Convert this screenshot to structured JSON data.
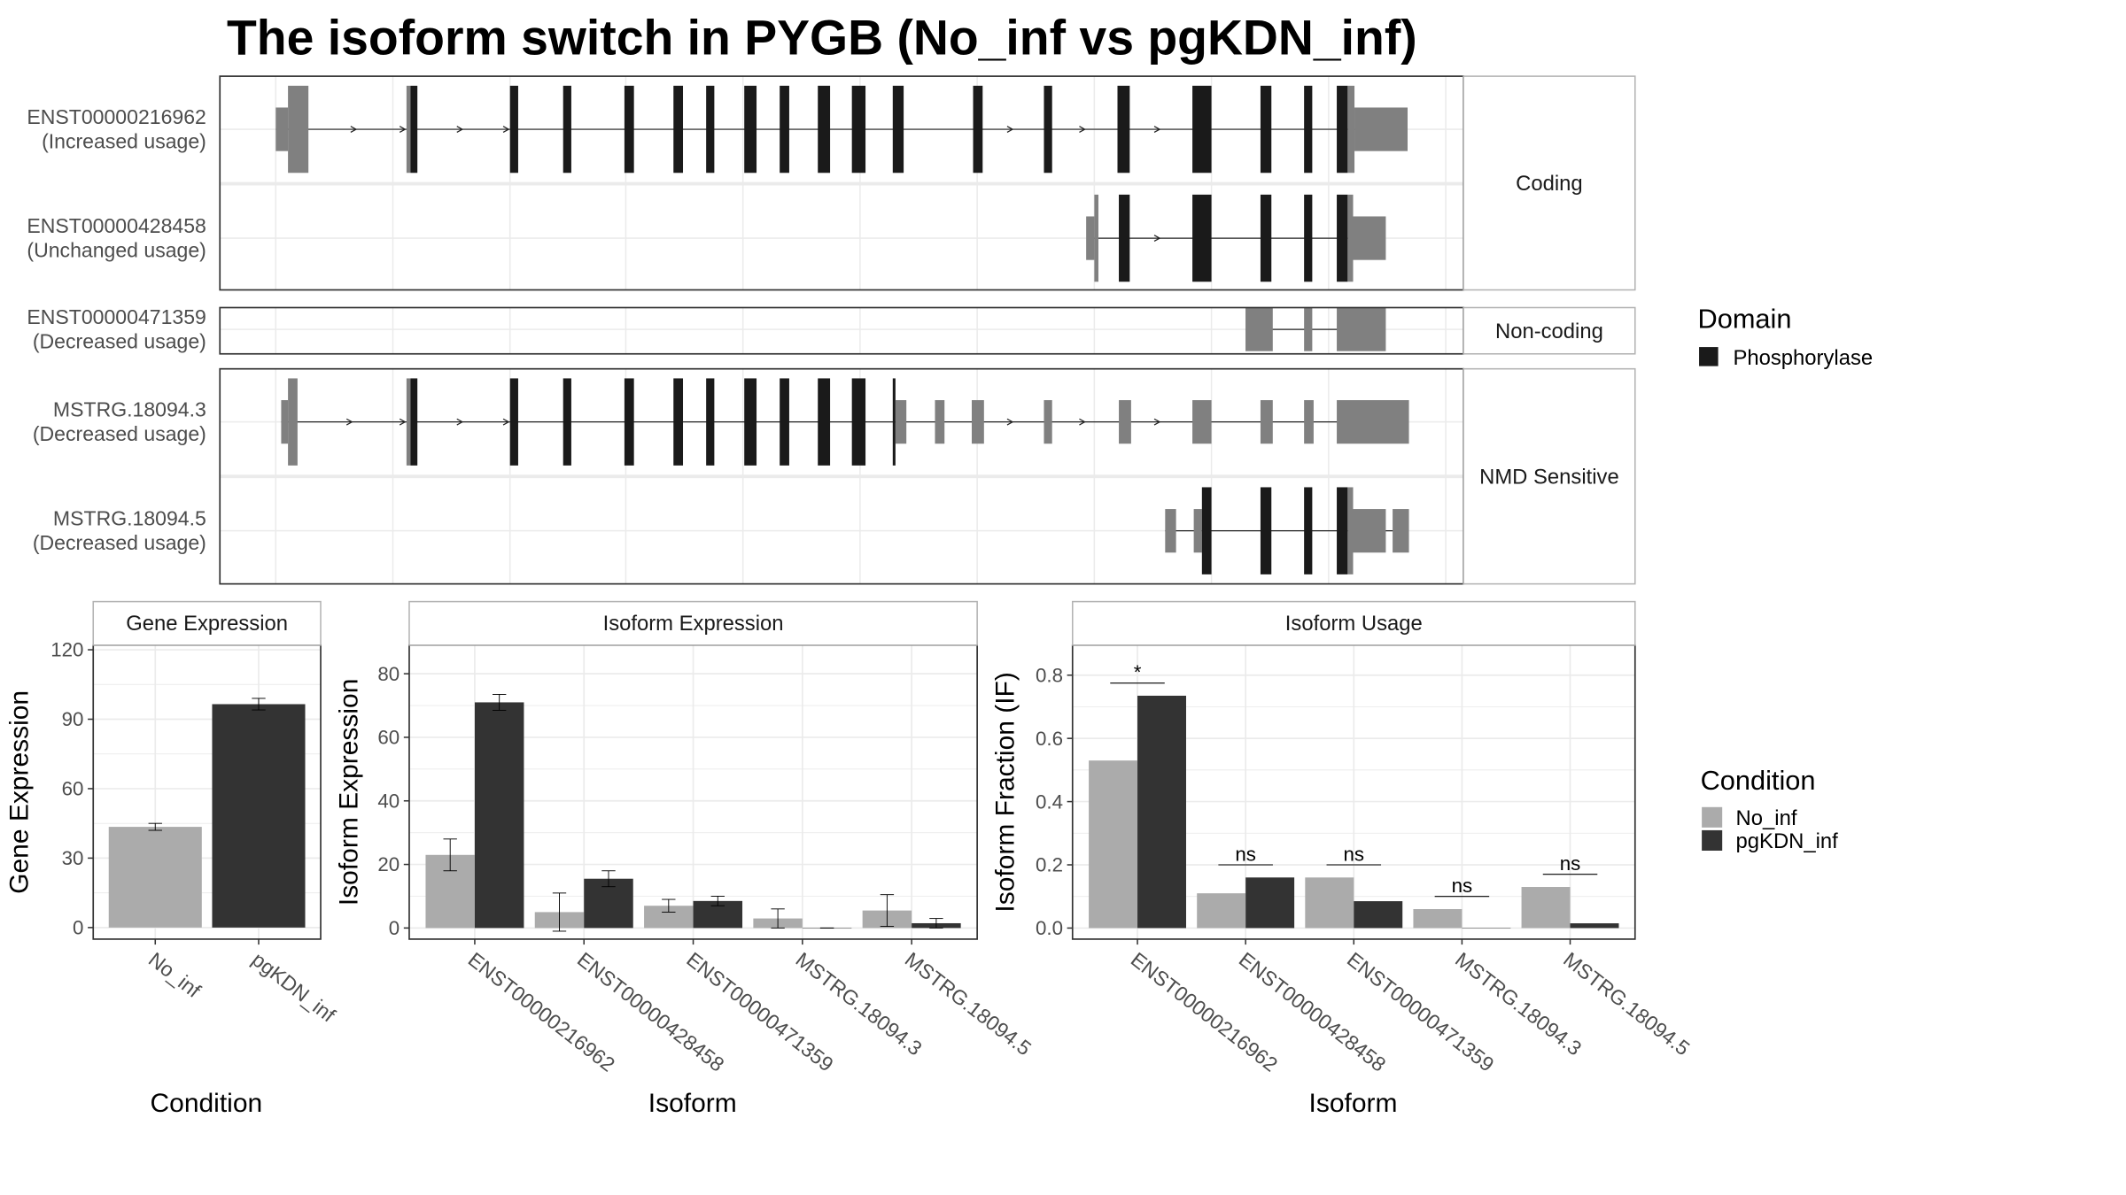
{
  "title": "The isoform switch in PYGB (No_inf vs pgKDN_inf)",
  "colors": {
    "no_inf": "#ababab",
    "pgkdn_inf": "#333333",
    "domain": "#1a1a1a",
    "exon": "#808080",
    "panel_border": "#333333",
    "strip_border": "#b3b3b3",
    "grid": "#ebebeb",
    "text": "#4d4d4d"
  },
  "structure": {
    "groups": [
      {
        "label": "Coding",
        "isoforms": [
          {
            "id": "ENST00000216962",
            "usage": "(Increased usage)"
          },
          {
            "id": "ENST00000428458",
            "usage": "(Unchanged usage)"
          }
        ]
      },
      {
        "label": "Non-coding",
        "isoforms": [
          {
            "id": "ENST00000471359",
            "usage": "(Decreased usage)"
          }
        ]
      },
      {
        "label": "NMD Sensitive",
        "isoforms": [
          {
            "id": "MSTRG.18094.3",
            "usage": "(Decreased usage)"
          },
          {
            "id": "MSTRG.18094.5",
            "usage": "(Decreased usage)"
          }
        ]
      }
    ]
  },
  "legend_domain": {
    "title": "Domain",
    "items": [
      {
        "label": "Phosphorylase",
        "color": "#1a1a1a"
      }
    ]
  },
  "legend_condition": {
    "title": "Condition",
    "items": [
      {
        "label": "No_inf",
        "color": "#ababab"
      },
      {
        "label": "pgKDN_inf",
        "color": "#333333"
      }
    ]
  },
  "chart_data": [
    {
      "type": "bar",
      "strip": "Gene Expression",
      "xlabel": "Condition",
      "ylabel": "Gene Expression",
      "categories": [
        "No_inf",
        "pgKDN_inf"
      ],
      "values": [
        43.5,
        96.5
      ],
      "errors": [
        1.5,
        2.5
      ],
      "yticks": [
        0,
        30,
        60,
        90,
        120
      ],
      "ylim": [
        -5,
        122
      ],
      "grid": true
    },
    {
      "type": "bar",
      "strip": "Isoform Expression",
      "xlabel": "Isoform",
      "ylabel": "Isoform Expression",
      "categories": [
        "ENST00000216962",
        "ENST00000428458",
        "ENST00000471359",
        "MSTRG.18094.3",
        "MSTRG.18094.5"
      ],
      "series": [
        {
          "name": "No_inf",
          "values": [
            23,
            5,
            7,
            3,
            5.5
          ],
          "errors": [
            5,
            6,
            2,
            3,
            5
          ]
        },
        {
          "name": "pgKDN_inf",
          "values": [
            71,
            15.5,
            8.5,
            0,
            1.5
          ],
          "errors": [
            2.5,
            2.5,
            1.5,
            0,
            1.5
          ]
        }
      ],
      "yticks": [
        0,
        20,
        40,
        60,
        80
      ],
      "ylim": [
        -3.5,
        89
      ],
      "grid": true
    },
    {
      "type": "bar",
      "strip": "Isoform Usage",
      "xlabel": "Isoform",
      "ylabel": "Isoform Fraction (IF)",
      "categories": [
        "ENST00000216962",
        "ENST00000428458",
        "ENST00000471359",
        "MSTRG.18094.3",
        "MSTRG.18094.5"
      ],
      "series": [
        {
          "name": "No_inf",
          "values": [
            0.53,
            0.11,
            0.16,
            0.06,
            0.13
          ]
        },
        {
          "name": "pgKDN_inf",
          "values": [
            0.735,
            0.16,
            0.085,
            0,
            0.015
          ]
        }
      ],
      "significance": [
        "*",
        "ns",
        "ns",
        "ns",
        "ns"
      ],
      "sig_y": [
        0.775,
        0.2,
        0.2,
        0.1,
        0.17
      ],
      "yticks": [
        0.0,
        0.2,
        0.4,
        0.6,
        0.8
      ],
      "ylim": [
        -0.035,
        0.895
      ],
      "grid": true
    }
  ]
}
